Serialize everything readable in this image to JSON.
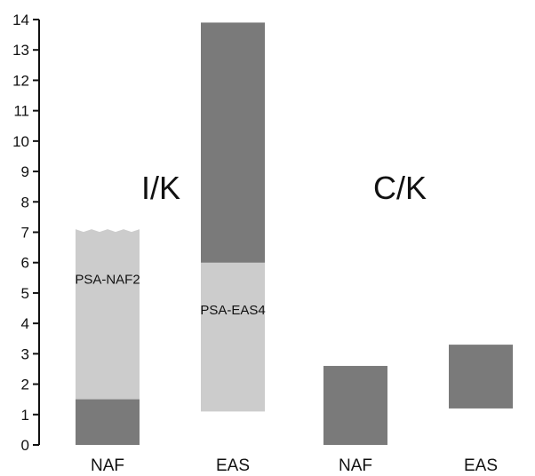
{
  "chart_data": {
    "type": "bar",
    "subtype": "floating-range",
    "title": "",
    "xlabel": "",
    "ylabel": "",
    "ylim": [
      0,
      14
    ],
    "yticks": [
      0,
      1,
      2,
      3,
      4,
      5,
      6,
      7,
      8,
      9,
      10,
      11,
      12,
      13,
      14
    ],
    "grid": false,
    "legend": "none",
    "categories": [
      "NAF",
      "EAS",
      "NAF",
      "EAS"
    ],
    "group_labels": [
      {
        "text": "I/K",
        "over_categories": [
          0,
          1
        ]
      },
      {
        "text": "C/K",
        "over_categories": [
          2,
          3
        ]
      }
    ],
    "bars": [
      {
        "category_index": 0,
        "low": 0,
        "high": 1.9,
        "color": "#7a7a7a"
      },
      {
        "category_index": 0,
        "low": 1.5,
        "high": 7.1,
        "color": "#cccccc",
        "label": "PSA-NAF2",
        "ragged_top": true
      },
      {
        "category_index": 1,
        "low": 5.0,
        "high": 13.9,
        "color": "#7a7a7a"
      },
      {
        "category_index": 1,
        "low": 1.1,
        "high": 6.0,
        "color": "#cccccc",
        "label": "PSA-EAS4"
      },
      {
        "category_index": 2,
        "low": 0,
        "high": 2.6,
        "color": "#7a7a7a"
      },
      {
        "category_index": 3,
        "low": 1.2,
        "high": 3.3,
        "color": "#7a7a7a"
      }
    ],
    "colors": {
      "dark": "#7a7a7a",
      "light": "#cccccc",
      "axis": "#111111"
    }
  }
}
